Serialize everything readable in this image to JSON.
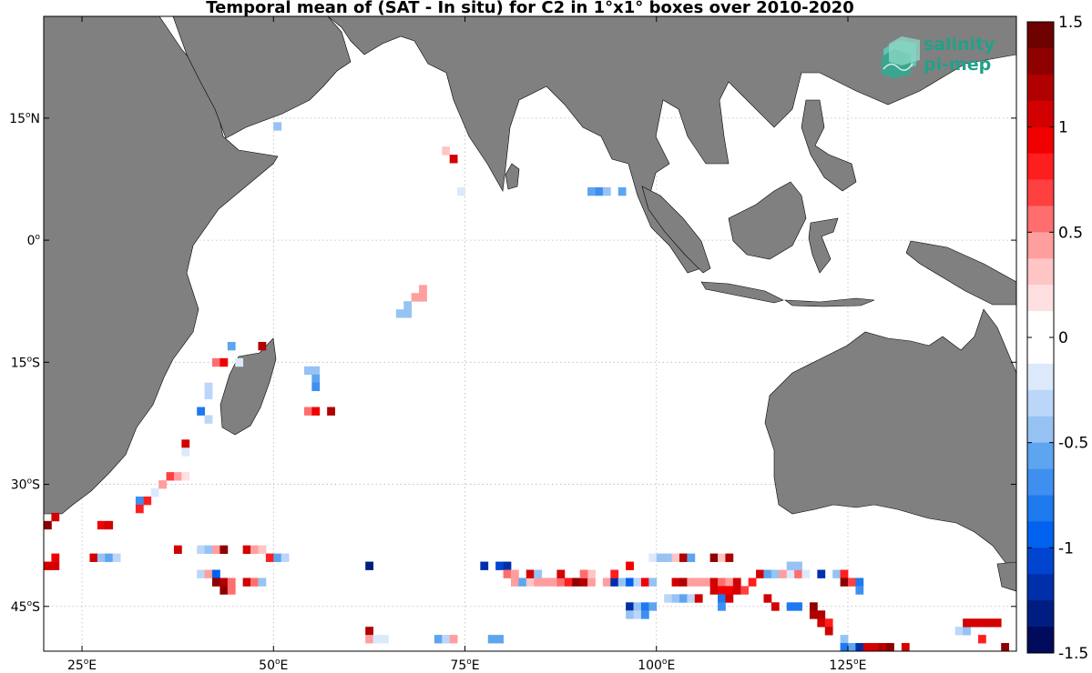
{
  "title": "Temporal mean of (SAT - In situ) for C2 in 1°x1° boxes over 2010-2020",
  "map": {
    "x_ticks": [
      {
        "value": 25,
        "label": "25",
        "suffix": "E"
      },
      {
        "value": 50,
        "label": "50",
        "suffix": "E"
      },
      {
        "value": 75,
        "label": "75",
        "suffix": "E"
      },
      {
        "value": 100,
        "label": "100",
        "suffix": "E"
      },
      {
        "value": 125,
        "label": "125",
        "suffix": "E"
      }
    ],
    "y_ticks": [
      {
        "value": 15,
        "label": "15",
        "suffix": "N"
      },
      {
        "value": 0,
        "label": "0",
        "suffix": ""
      },
      {
        "value": -15,
        "label": "15",
        "suffix": "S"
      },
      {
        "value": -30,
        "label": "30",
        "suffix": "S"
      },
      {
        "value": -45,
        "label": "45",
        "suffix": "S"
      }
    ],
    "lon_range": [
      20,
      147
    ],
    "lat_range": [
      -50.5,
      27.5
    ],
    "land_color": "#808080",
    "grid": true
  },
  "colorbar": {
    "min": -1.5,
    "max": 1.5,
    "ticks": [
      "1.5",
      "1",
      "0.5",
      "0",
      "-0.5",
      "-1",
      "-1.5"
    ],
    "colors": [
      "#ffffff",
      "#dce9fb",
      "#bbd6f8",
      "#96c3f4",
      "#5ea5ef",
      "#3f8ff0",
      "#1f79ef",
      "#0062ee",
      "#0044d0",
      "#002faa",
      "#001e82",
      "#000b5d",
      "#ffe0e0",
      "#ffc4c4",
      "#ff9e9e",
      "#ff6e6e",
      "#ff4040",
      "#ff1e1e",
      "#f00000",
      "#d20000",
      "#b00000",
      "#8e0000",
      "#6e0000"
    ]
  },
  "logo": {
    "line1": "salinity",
    "line2": "pi-mep",
    "color": "#23a08a"
  },
  "cells": [
    [
      50,
      14,
      -0.4
    ],
    [
      72,
      11,
      0.2
    ],
    [
      73,
      10,
      1.0
    ],
    [
      74,
      6,
      -0.1
    ],
    [
      91,
      6,
      -0.5
    ],
    [
      92,
      6,
      -0.6
    ],
    [
      93,
      6,
      -0.4
    ],
    [
      95,
      6,
      -0.5
    ],
    [
      69,
      -6,
      0.4
    ],
    [
      68,
      -7,
      0.3
    ],
    [
      69,
      -7,
      0.3
    ],
    [
      67,
      -8,
      -0.4
    ],
    [
      66,
      -9,
      -0.3
    ],
    [
      67,
      -9,
      -0.4
    ],
    [
      44,
      -13,
      -0.5
    ],
    [
      48,
      -13,
      1.2
    ],
    [
      42,
      -15,
      0.5
    ],
    [
      43,
      -15,
      0.9
    ],
    [
      45,
      -15,
      -0.1
    ],
    [
      54,
      -16,
      -0.3
    ],
    [
      55,
      -16,
      -0.3
    ],
    [
      55,
      -17,
      -0.5
    ],
    [
      55,
      -18,
      -0.6
    ],
    [
      41,
      -18,
      -0.2
    ],
    [
      41,
      -19,
      -0.2
    ],
    [
      40,
      -21,
      -0.8
    ],
    [
      41,
      -22,
      -0.2
    ],
    [
      54,
      -21,
      0.5
    ],
    [
      55,
      -21,
      0.9
    ],
    [
      57,
      -21,
      1.1
    ],
    [
      38,
      -25,
      1.0
    ],
    [
      38,
      -26,
      -0.1
    ],
    [
      36,
      -29,
      0.6
    ],
    [
      37,
      -29,
      0.4
    ],
    [
      38,
      -29,
      0.1
    ],
    [
      35,
      -30,
      0.3
    ],
    [
      34,
      -31,
      -0.1
    ],
    [
      33,
      -32,
      0.7
    ],
    [
      32,
      -32,
      -0.6
    ],
    [
      32,
      -33,
      0.8
    ],
    [
      20,
      -35,
      1.3
    ],
    [
      21,
      -34,
      1.0
    ],
    [
      27,
      -35,
      0.9
    ],
    [
      28,
      -35,
      1.0
    ],
    [
      37,
      -38,
      1.0
    ],
    [
      40,
      -38,
      -0.2
    ],
    [
      41,
      -38,
      -0.4
    ],
    [
      42,
      -38,
      0.3
    ],
    [
      43,
      -38,
      1.3
    ],
    [
      46,
      -38,
      1.0
    ],
    [
      47,
      -38,
      0.4
    ],
    [
      48,
      -38,
      0.2
    ],
    [
      20,
      -40,
      1.0
    ],
    [
      21,
      -40,
      1.0
    ],
    [
      21,
      -39,
      0.9
    ],
    [
      26,
      -39,
      1.0
    ],
    [
      27,
      -39,
      -0.4
    ],
    [
      28,
      -39,
      -0.5
    ],
    [
      29,
      -39,
      -0.2
    ],
    [
      49,
      -39,
      0.8
    ],
    [
      50,
      -39,
      -0.5
    ],
    [
      51,
      -39,
      -0.2
    ],
    [
      40,
      -41,
      -0.2
    ],
    [
      41,
      -41,
      0.3
    ],
    [
      42,
      -41,
      -0.9
    ],
    [
      42,
      -42,
      1.3
    ],
    [
      43,
      -42,
      1.1
    ],
    [
      44,
      -42,
      0.5
    ],
    [
      46,
      -42,
      1.0
    ],
    [
      47,
      -42,
      0.5
    ],
    [
      48,
      -42,
      -0.3
    ],
    [
      43,
      -43,
      1.3
    ],
    [
      44,
      -43,
      0.5
    ],
    [
      62,
      -40,
      -1.3
    ],
    [
      77,
      -40,
      -1.1
    ],
    [
      79,
      -40,
      -1.0
    ],
    [
      80,
      -40,
      -1.1
    ],
    [
      80,
      -41,
      0.5
    ],
    [
      81,
      -41,
      0.3
    ],
    [
      81,
      -42,
      0.4
    ],
    [
      82,
      -42,
      -0.5
    ],
    [
      83,
      -42,
      0.2
    ],
    [
      84,
      -42,
      0.4
    ],
    [
      85,
      -42,
      0.3
    ],
    [
      86,
      -42,
      0.4
    ],
    [
      87,
      -42,
      0.5
    ],
    [
      88,
      -42,
      0.8
    ],
    [
      89,
      -42,
      1.3
    ],
    [
      90,
      -42,
      1.1
    ],
    [
      91,
      -42,
      0.3
    ],
    [
      91,
      -41,
      0.2
    ],
    [
      90,
      -41,
      0.5
    ],
    [
      83,
      -41,
      1.0
    ],
    [
      84,
      -41,
      -0.3
    ],
    [
      87,
      -41,
      1.0
    ],
    [
      93,
      -42,
      0.3
    ],
    [
      94,
      -42,
      -1.1
    ],
    [
      95,
      -42,
      -0.3
    ],
    [
      96,
      -42,
      -0.9
    ],
    [
      97,
      -42,
      -0.2
    ],
    [
      98,
      -42,
      0.9
    ],
    [
      99,
      -42,
      -0.4
    ],
    [
      94,
      -41,
      0.7
    ],
    [
      96,
      -40,
      0.9
    ],
    [
      99,
      -39,
      -0.1
    ],
    [
      100,
      -39,
      -0.3
    ],
    [
      101,
      -39,
      -0.3
    ],
    [
      102,
      -39,
      0.2
    ],
    [
      103,
      -39,
      1.2
    ],
    [
      104,
      -39,
      -0.5
    ],
    [
      107,
      -39,
      1.3
    ],
    [
      108,
      -39,
      0.2
    ],
    [
      109,
      -39,
      1.1
    ],
    [
      102,
      -42,
      1.0
    ],
    [
      103,
      -42,
      1.2
    ],
    [
      104,
      -42,
      0.3
    ],
    [
      105,
      -42,
      0.4
    ],
    [
      106,
      -42,
      0.4
    ],
    [
      107,
      -42,
      1.0
    ],
    [
      108,
      -42,
      0.5
    ],
    [
      109,
      -42,
      0.3
    ],
    [
      110,
      -42,
      1.0
    ],
    [
      112,
      -42,
      0.8
    ],
    [
      107,
      -43,
      1.0
    ],
    [
      108,
      -43,
      0.9
    ],
    [
      109,
      -43,
      0.9
    ],
    [
      110,
      -43,
      1.0
    ],
    [
      111,
      -43,
      0.6
    ],
    [
      101,
      -44,
      -0.2
    ],
    [
      102,
      -44,
      -0.4
    ],
    [
      103,
      -44,
      -0.5
    ],
    [
      104,
      -44,
      -0.2
    ],
    [
      105,
      -44,
      1.0
    ],
    [
      108,
      -44,
      -0.8
    ],
    [
      109,
      -44,
      1.0
    ],
    [
      108,
      -45,
      -0.6
    ],
    [
      113,
      -41,
      1.0
    ],
    [
      114,
      -41,
      -0.5
    ],
    [
      115,
      -41,
      -0.3
    ],
    [
      116,
      -41,
      0.4
    ],
    [
      117,
      -41,
      -0.1
    ],
    [
      118,
      -41,
      0.5
    ],
    [
      119,
      -41,
      -0.1
    ],
    [
      121,
      -41,
      -1.2
    ],
    [
      123,
      -41,
      -0.3
    ],
    [
      124,
      -41,
      0.7
    ],
    [
      117,
      -40,
      -0.3
    ],
    [
      118,
      -40,
      -0.3
    ],
    [
      124,
      -42,
      1.3
    ],
    [
      125,
      -42,
      0.6
    ],
    [
      126,
      -42,
      -0.8
    ],
    [
      126,
      -43,
      -0.6
    ],
    [
      114,
      -44,
      1.0
    ],
    [
      115,
      -45,
      1.0
    ],
    [
      96,
      -45,
      -1.1
    ],
    [
      97,
      -45,
      -0.4
    ],
    [
      98,
      -45,
      -0.8
    ],
    [
      99,
      -45,
      -0.5
    ],
    [
      96,
      -46,
      -0.3
    ],
    [
      97,
      -46,
      -0.2
    ],
    [
      98,
      -46,
      -0.6
    ],
    [
      117,
      -45,
      -0.7
    ],
    [
      118,
      -45,
      -0.7
    ],
    [
      120,
      -45,
      1.3
    ],
    [
      120,
      -46,
      1.2
    ],
    [
      121,
      -46,
      1.1
    ],
    [
      121,
      -47,
      1.0
    ],
    [
      122,
      -47,
      0.8
    ],
    [
      122,
      -48,
      1.0
    ],
    [
      62,
      -48,
      1.1
    ],
    [
      62,
      -49,
      0.4
    ],
    [
      63,
      -49,
      -0.1
    ],
    [
      64,
      -49,
      -0.1
    ],
    [
      71,
      -49,
      -0.5
    ],
    [
      72,
      -49,
      -0.2
    ],
    [
      73,
      -49,
      0.4
    ],
    [
      78,
      -49,
      -0.5
    ],
    [
      79,
      -49,
      -0.5
    ],
    [
      124,
      -49,
      -0.3
    ],
    [
      124,
      -50,
      -0.7
    ],
    [
      125,
      -50,
      -0.5
    ],
    [
      126,
      -50,
      -1.1
    ],
    [
      127,
      -50,
      1.0
    ],
    [
      128,
      -50,
      1.0
    ],
    [
      129,
      -50,
      1.2
    ],
    [
      130,
      -50,
      1.3
    ],
    [
      132,
      -50,
      1.0
    ],
    [
      139,
      -48,
      -0.2
    ],
    [
      140,
      -48,
      -0.4
    ],
    [
      140,
      -47,
      1.0
    ],
    [
      141,
      -47,
      1.0
    ],
    [
      142,
      -47,
      1.0
    ],
    [
      143,
      -47,
      1.0
    ],
    [
      144,
      -47,
      1.0
    ],
    [
      142,
      -49,
      0.8
    ],
    [
      145,
      -50,
      1.3
    ]
  ]
}
